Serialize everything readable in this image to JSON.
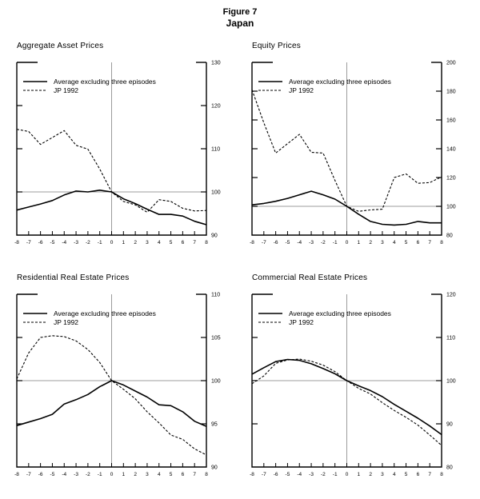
{
  "figure": {
    "label": "Figure 7",
    "title": "Japan"
  },
  "colors": {
    "line": "#000000",
    "reference_line": "#9c9c9c",
    "text": "#000000",
    "background": "#ffffff"
  },
  "legend": {
    "items": [
      {
        "label": "Average excluding three episodes",
        "style": "solid"
      },
      {
        "label": "JP 1992",
        "style": "dashed"
      }
    ]
  },
  "x_axis": {
    "min": -8,
    "max": 8,
    "ticks": [
      -8,
      -7,
      -6,
      -5,
      -4,
      -3,
      -2,
      -1,
      0,
      1,
      2,
      3,
      4,
      5,
      6,
      7,
      8
    ]
  },
  "chart_data": [
    {
      "type": "line",
      "title": "Aggregate Asset Prices",
      "xlim": [
        -8,
        8
      ],
      "ylim": [
        90,
        130
      ],
      "yticks": [
        90,
        100,
        110,
        120,
        130
      ],
      "ref_x": 0,
      "ref_y": 100,
      "x": [
        -8,
        -7,
        -6,
        -5,
        -4,
        -3,
        -2,
        -1,
        0,
        1,
        2,
        3,
        4,
        5,
        6,
        7,
        8
      ],
      "series": [
        {
          "name": "Average excluding three episodes",
          "style": "solid",
          "values": [
            95.8,
            96.5,
            97.2,
            98.0,
            99.3,
            100.2,
            100.0,
            100.4,
            100.0,
            98.4,
            97.3,
            96.0,
            94.8,
            94.8,
            94.4,
            93.2,
            92.4
          ]
        },
        {
          "name": "JP 1992",
          "style": "dashed",
          "values": [
            114.5,
            114.0,
            111.0,
            112.6,
            114.2,
            110.8,
            109.9,
            105.3,
            100.0,
            97.8,
            97.0,
            95.3,
            98.2,
            97.8,
            96.2,
            95.6,
            95.7
          ]
        }
      ]
    },
    {
      "type": "line",
      "title": "Equity Prices",
      "xlim": [
        -8,
        8
      ],
      "ylim": [
        80,
        200
      ],
      "yticks": [
        80,
        100,
        120,
        140,
        160,
        180,
        200
      ],
      "ref_x": 0,
      "ref_y": 100,
      "x": [
        -8,
        -7,
        -6,
        -5,
        -4,
        -3,
        -2,
        -1,
        0,
        1,
        2,
        3,
        4,
        5,
        6,
        7,
        8
      ],
      "series": [
        {
          "name": "Average excluding three episodes",
          "style": "solid",
          "values": [
            101.0,
            102.0,
            103.5,
            105.5,
            108.0,
            110.5,
            108.0,
            105.0,
            100.0,
            94.5,
            89.5,
            87.5,
            87.0,
            87.5,
            89.5,
            88.5,
            88.5
          ]
        },
        {
          "name": "JP 1992",
          "style": "dashed",
          "values": [
            181.0,
            158.0,
            137.0,
            143.5,
            150.0,
            137.5,
            137.0,
            118.0,
            100.0,
            96.5,
            97.5,
            98.0,
            120.0,
            122.5,
            116.0,
            116.5,
            120.5
          ]
        }
      ]
    },
    {
      "type": "line",
      "title": "Residential Real Estate Prices",
      "xlim": [
        -8,
        8
      ],
      "ylim": [
        90,
        110
      ],
      "yticks": [
        90,
        95,
        100,
        105,
        110
      ],
      "ref_x": 0,
      "ref_y": 100,
      "x": [
        -8,
        -7,
        -6,
        -5,
        -4,
        -3,
        -2,
        -1,
        0,
        1,
        2,
        3,
        4,
        5,
        6,
        7,
        8
      ],
      "series": [
        {
          "name": "Average excluding three episodes",
          "style": "solid",
          "values": [
            94.8,
            95.2,
            95.6,
            96.1,
            97.3,
            97.8,
            98.4,
            99.3,
            100.0,
            99.5,
            98.8,
            98.1,
            97.2,
            97.1,
            96.4,
            95.3,
            94.7
          ]
        },
        {
          "name": "JP 1992",
          "style": "dashed",
          "values": [
            100.2,
            103.2,
            105.0,
            105.2,
            105.1,
            104.6,
            103.6,
            102.1,
            100.0,
            99.0,
            97.9,
            96.4,
            95.1,
            93.7,
            93.2,
            92.1,
            91.4
          ]
        }
      ]
    },
    {
      "type": "line",
      "title": "Commercial Real Estate Prices",
      "xlim": [
        -8,
        8
      ],
      "ylim": [
        80,
        120
      ],
      "yticks": [
        80,
        90,
        100,
        110,
        120
      ],
      "ref_x": 0,
      "ref_y": 100,
      "x": [
        -8,
        -7,
        -6,
        -5,
        -4,
        -3,
        -2,
        -1,
        0,
        1,
        2,
        3,
        4,
        5,
        6,
        7,
        8
      ],
      "series": [
        {
          "name": "Average excluding three episodes",
          "style": "solid",
          "values": [
            101.5,
            103.0,
            104.4,
            104.9,
            104.7,
            103.9,
            102.8,
            101.6,
            100.0,
            98.8,
            97.7,
            96.3,
            94.5,
            92.9,
            91.3,
            89.5,
            87.5
          ]
        },
        {
          "name": "JP 1992",
          "style": "dashed",
          "values": [
            99.3,
            101.1,
            104.0,
            104.8,
            105.0,
            104.5,
            103.6,
            102.1,
            100.0,
            98.2,
            96.9,
            94.9,
            93.1,
            91.5,
            89.7,
            87.4,
            85.0
          ]
        }
      ]
    }
  ]
}
